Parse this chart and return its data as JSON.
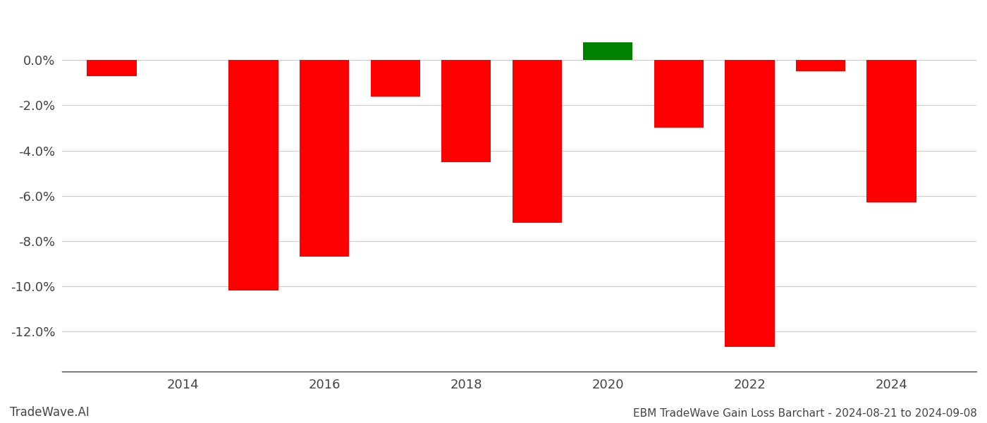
{
  "years": [
    2013,
    2015,
    2016,
    2017,
    2018,
    2019,
    2020,
    2021,
    2022,
    2023,
    2024
  ],
  "values": [
    -0.007,
    -0.102,
    -0.087,
    -0.016,
    -0.045,
    -0.072,
    0.008,
    -0.03,
    -0.127,
    -0.005,
    -0.063
  ],
  "bar_colors": [
    "#ff0000",
    "#ff0000",
    "#ff0000",
    "#ff0000",
    "#ff0000",
    "#ff0000",
    "#008000",
    "#ff0000",
    "#ff0000",
    "#ff0000",
    "#ff0000"
  ],
  "title": "EBM TradeWave Gain Loss Barchart - 2024-08-21 to 2024-09-08",
  "watermark": "TradeWave.AI",
  "ylim": [
    -0.138,
    0.022
  ],
  "ytick_vals": [
    0.0,
    -0.02,
    -0.04,
    -0.06,
    -0.08,
    -0.1,
    -0.12
  ],
  "xlim": [
    2012.3,
    2025.2
  ],
  "xticks": [
    2014,
    2016,
    2018,
    2020,
    2022,
    2024
  ],
  "bar_width": 0.7,
  "background_color": "#ffffff",
  "grid_color": "#cccccc",
  "title_fontsize": 11,
  "watermark_fontsize": 12,
  "tick_fontsize": 13
}
